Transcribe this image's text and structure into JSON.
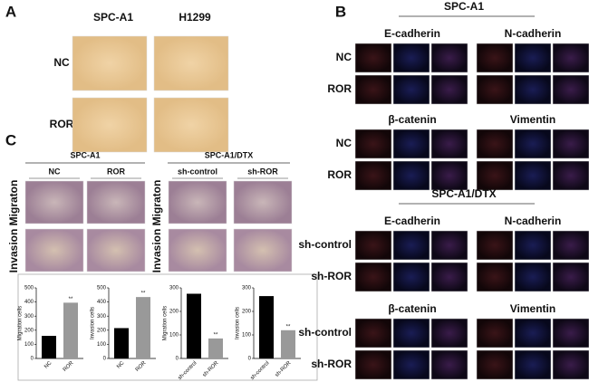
{
  "panel_a": {
    "label": "A",
    "columns": [
      "SPC-A1",
      "H1299"
    ],
    "rows": [
      "NC",
      "ROR"
    ]
  },
  "panel_b": {
    "label": "B",
    "groups": [
      {
        "title": "SPC-A1",
        "markers": [
          "E-cadherin",
          "N-cadherin",
          "β-catenin",
          "Vimentin"
        ],
        "rows": [
          "NC",
          "ROR"
        ]
      },
      {
        "title": "SPC-A1/DTX",
        "markers": [
          "E-cadherin",
          "N-cadherin",
          "β-catenin",
          "Vimentin"
        ],
        "rows": [
          "sh-control",
          "sh-ROR"
        ]
      }
    ]
  },
  "panel_c": {
    "label": "C",
    "groups": [
      {
        "title": "SPC-A1",
        "columns": [
          "NC",
          "ROR"
        ]
      },
      {
        "title": "SPC-A1/DTX",
        "columns": [
          "sh-control",
          "sh-ROR"
        ]
      }
    ],
    "rows": [
      "Migraton",
      "Invasion"
    ]
  },
  "chart_data": [
    {
      "type": "bar",
      "y_label": "Migration cells",
      "categories": [
        "NC",
        "ROR"
      ],
      "values": [
        160,
        395
      ],
      "colors": [
        "#000000",
        "#999999"
      ],
      "annotation": "**",
      "ylim": [
        0,
        500
      ],
      "yticks": [
        0,
        100,
        200,
        300,
        400,
        500
      ]
    },
    {
      "type": "bar",
      "y_label": "Invasion cells",
      "categories": [
        "NC",
        "ROR"
      ],
      "values": [
        215,
        435
      ],
      "colors": [
        "#000000",
        "#999999"
      ],
      "annotation": "**",
      "ylim": [
        0,
        500
      ],
      "yticks": [
        0,
        100,
        200,
        300,
        400,
        500
      ]
    },
    {
      "type": "bar",
      "y_label": "Migration cells",
      "categories": [
        "sh-control",
        "sh-ROR"
      ],
      "values": [
        275,
        85
      ],
      "colors": [
        "#000000",
        "#999999"
      ],
      "annotation": "**",
      "ylim": [
        0,
        300
      ],
      "yticks": [
        0,
        100,
        200,
        300
      ]
    },
    {
      "type": "bar",
      "y_label": "Invasion cells",
      "categories": [
        "sh-control",
        "sh-ROR"
      ],
      "values": [
        265,
        120
      ],
      "colors": [
        "#000000",
        "#999999"
      ],
      "annotation": "**",
      "ylim": [
        0,
        300
      ],
      "yticks": [
        0,
        100,
        200,
        300
      ]
    }
  ]
}
